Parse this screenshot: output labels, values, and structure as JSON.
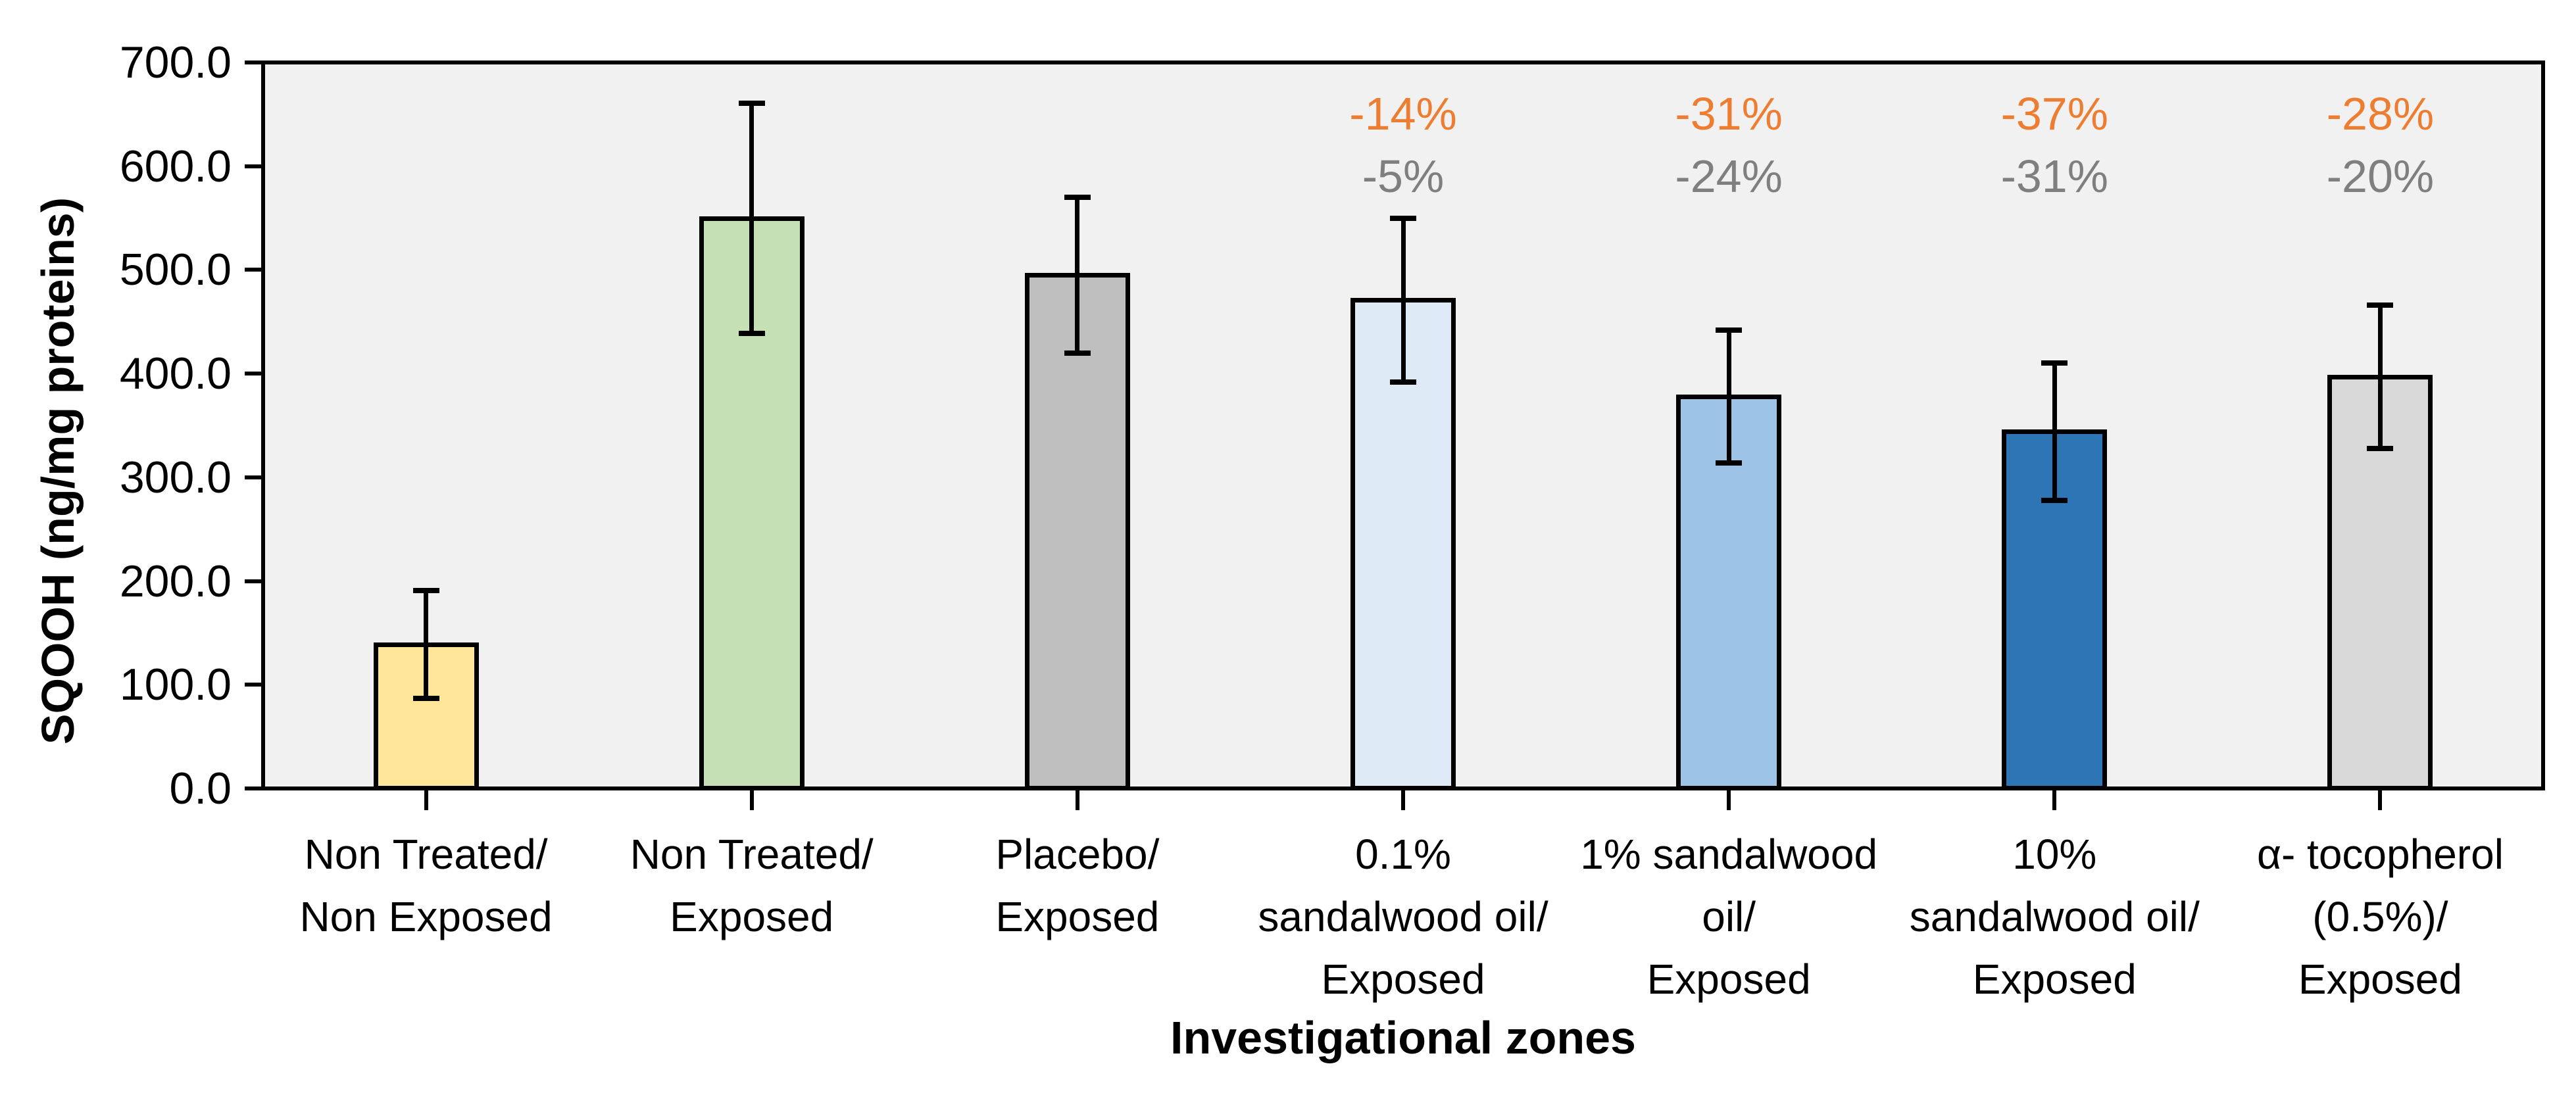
{
  "chart_data": {
    "type": "bar",
    "title": "",
    "xlabel": "Investigational zones",
    "ylabel": "SQOOH (ng/mg proteins)",
    "ylim": [
      0,
      700
    ],
    "y_tick_interval": 100,
    "y_tick_labels": [
      "0.0",
      "100.0",
      "200.0",
      "300.0",
      "400.0",
      "500.0",
      "600.0",
      "700.0"
    ],
    "grid": false,
    "legend_position": "none",
    "plot_background": "#F1F1F1",
    "axis_color": "#000000",
    "error_bar_color": "#000000",
    "categories": [
      {
        "label_lines": [
          "Non Treated/",
          "Non Exposed"
        ],
        "value": 139,
        "error": 52,
        "fill": "#FFE699",
        "annotations": []
      },
      {
        "label_lines": [
          "Non Treated/",
          "Exposed"
        ],
        "value": 550,
        "error": 111,
        "fill": "#C5E0B4",
        "annotations": []
      },
      {
        "label_lines": [
          "Placebo/",
          "Exposed"
        ],
        "value": 495,
        "error": 75,
        "fill": "#BFBFBF",
        "annotations": []
      },
      {
        "label_lines": [
          "0.1%",
          "sandalwood oil/",
          "Exposed"
        ],
        "value": 471,
        "error": 79,
        "fill": "#DEEBF7",
        "annotations": [
          {
            "text": "-14%",
            "color": "#ED7D31"
          },
          {
            "text": "-5%",
            "color": "#7F7F7F"
          }
        ]
      },
      {
        "label_lines": [
          "1% sandalwood",
          "oil/",
          "Exposed"
        ],
        "value": 378,
        "error": 64,
        "fill": "#9DC3E6",
        "annotations": [
          {
            "text": "-31%",
            "color": "#ED7D31"
          },
          {
            "text": "-24%",
            "color": "#7F7F7F"
          }
        ]
      },
      {
        "label_lines": [
          "10%",
          "sandalwood oil/",
          "Exposed"
        ],
        "value": 344,
        "error": 66,
        "fill": "#2E75B6",
        "annotations": [
          {
            "text": "-37%",
            "color": "#ED7D31"
          },
          {
            "text": "-31%",
            "color": "#7F7F7F"
          }
        ]
      },
      {
        "label_lines": [
          "α- tocopherol",
          "(0.5%)/",
          "Exposed"
        ],
        "value": 397,
        "error": 69,
        "fill": "#D9D9D9",
        "annotations": [
          {
            "text": "-28%",
            "color": "#ED7D31"
          },
          {
            "text": "-20%",
            "color": "#7F7F7F"
          }
        ]
      }
    ]
  }
}
